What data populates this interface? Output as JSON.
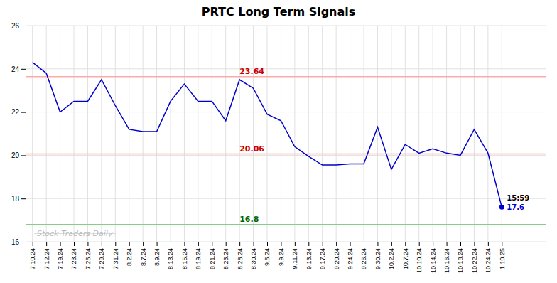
{
  "chart_data": {
    "type": "line",
    "title": "PRTC Long Term Signals",
    "categories": [
      "7.10.24",
      "7.12.24",
      "7.19.24",
      "7.23.24",
      "7.25.24",
      "7.29.24",
      "7.31.24",
      "8.2.24",
      "8.7.24",
      "8.9.24",
      "8.13.24",
      "8.15.24",
      "8.19.24",
      "8.21.24",
      "8.23.24",
      "8.28.24",
      "8.30.24",
      "9.5.24",
      "9.9.24",
      "9.11.24",
      "9.13.24",
      "9.17.24",
      "9.20.24",
      "9.24.24",
      "9.26.24",
      "9.30.24",
      "10.2.24",
      "10.7.24",
      "10.10.24",
      "10.14.24",
      "10.16.24",
      "10.18.24",
      "10.22.24",
      "10.24.24",
      "1.10.25"
    ],
    "values": [
      24.3,
      23.8,
      22.0,
      22.5,
      22.5,
      23.5,
      22.3,
      21.2,
      21.1,
      21.1,
      22.5,
      23.3,
      22.5,
      22.5,
      21.6,
      23.5,
      23.1,
      21.9,
      21.6,
      20.4,
      19.95,
      19.55,
      19.55,
      19.6,
      19.6,
      21.3,
      19.35,
      20.5,
      20.1,
      20.3,
      20.1,
      20.0,
      21.2,
      20.1,
      17.6
    ],
    "color": "#0000cc",
    "marker": "last",
    "ylim": [
      16,
      26
    ],
    "yticks": [
      16,
      18,
      20,
      22,
      24,
      26
    ],
    "grid": true,
    "hlines": [
      {
        "value": 23.64,
        "color": "#ffaaaa",
        "label_color": "#cc0000"
      },
      {
        "value": 20.06,
        "color": "#ffaaaa",
        "label_color": "#cc0000"
      },
      {
        "value": 16.8,
        "color": "#88cc88",
        "label_color": "#006600"
      }
    ],
    "annotations": [
      {
        "text": "15:59",
        "color": "#000000"
      },
      {
        "text": "17.6",
        "color": "#0000cc"
      }
    ],
    "watermark": {
      "text": "Stock Traders Daily",
      "color": "#bbbbbb"
    }
  }
}
